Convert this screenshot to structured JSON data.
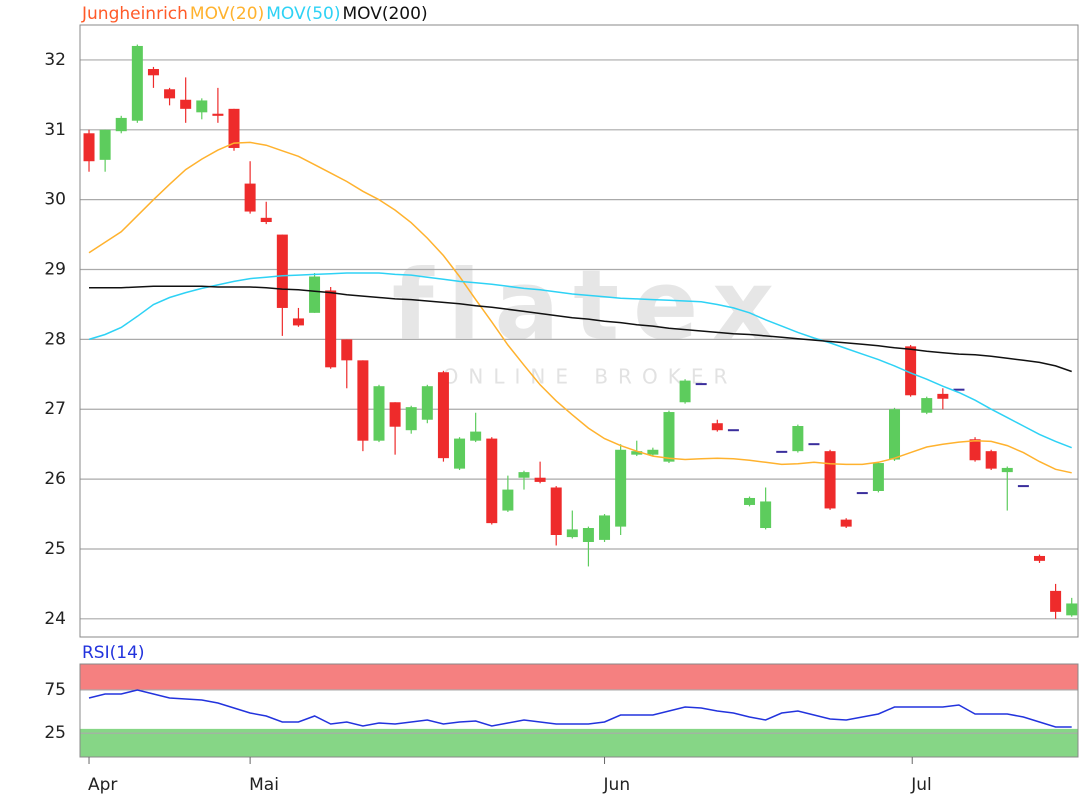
{
  "chart_data": [
    {
      "type": "candlestick",
      "watermark": [
        "flatex",
        "ONLINE BROKER"
      ],
      "xlim": [
        -0.56,
        61.39
      ],
      "ylim": [
        23.74,
        32.5
      ],
      "yticks": [
        24,
        25,
        26,
        27,
        28,
        29,
        30,
        31,
        32
      ],
      "grid": true,
      "candles": {
        "name": "Jungheinrich",
        "color": "#ff5a28",
        "color_up": "#5dcc5d",
        "color_down": "#ee2b2b",
        "color_flat": "#3a2e9c",
        "open": [
          30.95,
          30.57,
          30.98,
          31.13,
          31.87,
          31.58,
          31.43,
          31.25,
          31.23,
          31.3,
          30.23,
          29.74,
          29.5,
          28.3,
          28.38,
          28.7,
          28.0,
          27.7,
          26.55,
          27.1,
          26.7,
          26.85,
          27.53,
          26.15,
          26.55,
          26.58,
          25.55,
          26.02,
          26.02,
          25.88,
          25.17,
          25.1,
          25.13,
          25.32,
          26.35,
          26.35,
          26.25,
          27.1,
          27.36,
          26.8,
          26.7,
          25.63,
          25.3,
          26.39,
          26.4,
          26.5,
          26.4,
          25.42,
          25.8,
          25.83,
          26.28,
          27.9,
          26.95,
          27.22,
          27.28,
          26.57,
          26.4,
          26.1,
          25.9,
          24.9,
          24.4,
          24.05
        ],
        "high": [
          31.0,
          31.0,
          31.2,
          32.22,
          31.9,
          31.6,
          31.75,
          31.45,
          31.6,
          31.3,
          30.55,
          29.97,
          29.5,
          28.45,
          28.95,
          28.75,
          28.0,
          27.7,
          27.35,
          27.1,
          27.05,
          27.35,
          27.55,
          26.6,
          26.95,
          26.6,
          26.05,
          26.12,
          26.25,
          25.9,
          25.55,
          25.32,
          25.5,
          26.5,
          26.55,
          26.45,
          26.98,
          27.43,
          27.36,
          26.85,
          26.7,
          25.75,
          25.88,
          26.39,
          26.78,
          26.5,
          26.42,
          25.44,
          25.8,
          26.25,
          27.02,
          27.92,
          27.18,
          27.3,
          27.28,
          26.6,
          26.42,
          26.18,
          25.9,
          24.92,
          24.5,
          24.3
        ],
        "low": [
          30.4,
          30.4,
          30.95,
          31.1,
          31.6,
          31.35,
          31.1,
          31.15,
          31.1,
          30.7,
          29.8,
          29.65,
          28.05,
          28.18,
          28.38,
          27.58,
          27.3,
          26.4,
          26.53,
          26.35,
          26.65,
          26.8,
          26.25,
          26.13,
          26.53,
          25.35,
          25.53,
          25.85,
          25.94,
          25.05,
          25.15,
          24.75,
          25.1,
          25.2,
          26.33,
          26.33,
          26.23,
          27.08,
          27.36,
          26.68,
          26.7,
          25.61,
          25.28,
          26.39,
          26.38,
          26.5,
          25.56,
          25.3,
          25.8,
          25.81,
          26.26,
          27.18,
          26.93,
          27.0,
          27.28,
          26.25,
          26.13,
          25.55,
          25.9,
          24.8,
          24.0,
          24.03
        ],
        "close": [
          30.55,
          31.0,
          31.17,
          32.2,
          31.78,
          31.45,
          31.3,
          31.42,
          31.2,
          30.74,
          29.83,
          29.68,
          28.45,
          28.2,
          28.9,
          27.6,
          27.7,
          26.55,
          27.33,
          26.75,
          27.03,
          27.33,
          26.3,
          26.58,
          26.68,
          25.37,
          25.85,
          26.1,
          25.96,
          25.2,
          25.28,
          25.3,
          25.48,
          26.42,
          26.4,
          26.42,
          26.96,
          27.41,
          27.36,
          26.7,
          26.7,
          25.73,
          25.68,
          26.39,
          26.76,
          26.5,
          25.58,
          25.32,
          25.8,
          26.23,
          27.0,
          27.2,
          27.16,
          27.15,
          27.28,
          26.27,
          26.15,
          26.16,
          25.9,
          24.83,
          24.1,
          24.22
        ]
      },
      "series": [
        {
          "name": "MOV(20)",
          "color": "#ffb22e",
          "values": [
            29.24,
            29.39,
            29.54,
            29.77,
            30.0,
            30.22,
            30.43,
            30.58,
            30.71,
            30.81,
            30.82,
            30.78,
            30.7,
            30.62,
            30.5,
            30.38,
            30.26,
            30.12,
            30.0,
            29.85,
            29.67,
            29.45,
            29.2,
            28.9,
            28.57,
            28.25,
            27.92,
            27.63,
            27.35,
            27.12,
            26.92,
            26.73,
            26.58,
            26.48,
            26.4,
            26.33,
            26.3,
            26.28,
            26.29,
            26.3,
            26.29,
            26.27,
            26.24,
            26.21,
            26.22,
            26.24,
            26.22,
            26.21,
            26.21,
            26.24,
            26.3,
            26.38,
            26.46,
            26.5,
            26.53,
            26.55,
            26.54,
            26.48,
            26.38,
            26.25,
            26.14,
            26.09
          ]
        },
        {
          "name": "MOV(50)",
          "color": "#2ed2f5",
          "values": [
            28.0,
            28.07,
            28.17,
            28.33,
            28.5,
            28.6,
            28.67,
            28.73,
            28.78,
            28.83,
            28.87,
            28.89,
            28.91,
            28.92,
            28.93,
            28.94,
            28.95,
            28.95,
            28.95,
            28.93,
            28.92,
            28.89,
            28.86,
            28.83,
            28.81,
            28.79,
            28.76,
            28.73,
            28.71,
            28.68,
            28.65,
            28.63,
            28.61,
            28.59,
            28.58,
            28.57,
            28.56,
            28.55,
            28.54,
            28.5,
            28.45,
            28.38,
            28.28,
            28.19,
            28.1,
            28.02,
            27.95,
            27.87,
            27.79,
            27.71,
            27.62,
            27.52,
            27.43,
            27.33,
            27.24,
            27.13,
            27.0,
            26.88,
            26.76,
            26.64,
            26.54,
            26.45
          ]
        },
        {
          "name": "MOV(200)",
          "color": "#111111",
          "values": [
            28.74,
            28.74,
            28.74,
            28.75,
            28.76,
            28.76,
            28.76,
            28.76,
            28.75,
            28.75,
            28.75,
            28.74,
            28.72,
            28.71,
            28.69,
            28.67,
            28.64,
            28.62,
            28.6,
            28.58,
            28.57,
            28.55,
            28.53,
            28.51,
            28.48,
            28.46,
            28.43,
            28.4,
            28.37,
            28.34,
            28.31,
            28.29,
            28.26,
            28.24,
            28.21,
            28.19,
            28.16,
            28.14,
            28.12,
            28.1,
            28.08,
            28.07,
            28.05,
            28.03,
            28.01,
            27.99,
            27.97,
            27.95,
            27.93,
            27.91,
            27.88,
            27.86,
            27.83,
            27.81,
            27.79,
            27.78,
            27.76,
            27.73,
            27.7,
            27.67,
            27.62,
            27.54
          ]
        }
      ]
    },
    {
      "type": "line",
      "xlim": [
        -0.56,
        61.39
      ],
      "ylim": [
        -2.5,
        105
      ],
      "yticks": [
        25,
        75
      ],
      "grid": true,
      "bands": [
        {
          "from": 75,
          "to": 105,
          "color": "#f58080"
        },
        {
          "from": -2.5,
          "to": 30,
          "color": "#86d686"
        }
      ],
      "xticks": [
        {
          "value": 0,
          "label": "Apr"
        },
        {
          "value": 10,
          "label": "Mai"
        },
        {
          "value": 32,
          "label": "Jun"
        },
        {
          "value": 51.1,
          "label": "Jul"
        }
      ],
      "series": [
        {
          "name": "RSI(14)",
          "color": "#2233dd",
          "values": [
            65.7,
            70.3,
            70.3,
            74.9,
            70.3,
            65.7,
            64.5,
            63.4,
            59.9,
            54.1,
            48.4,
            44.9,
            37.9,
            37.9,
            44.9,
            35.6,
            37.9,
            33.3,
            36.8,
            35.6,
            37.9,
            40.3,
            35.6,
            37.9,
            39.1,
            33.3,
            36.8,
            40.3,
            37.9,
            35.6,
            35.6,
            35.6,
            37.9,
            46.0,
            46.0,
            46.0,
            50.7,
            55.3,
            54.1,
            50.7,
            48.4,
            43.7,
            40.3,
            48.4,
            50.7,
            46.0,
            41.4,
            40.3,
            43.7,
            47.2,
            55.3,
            55.3,
            55.3,
            55.3,
            57.6,
            47.2,
            47.2,
            47.2,
            43.7,
            37.9,
            32.2,
            32.2
          ]
        }
      ]
    }
  ]
}
